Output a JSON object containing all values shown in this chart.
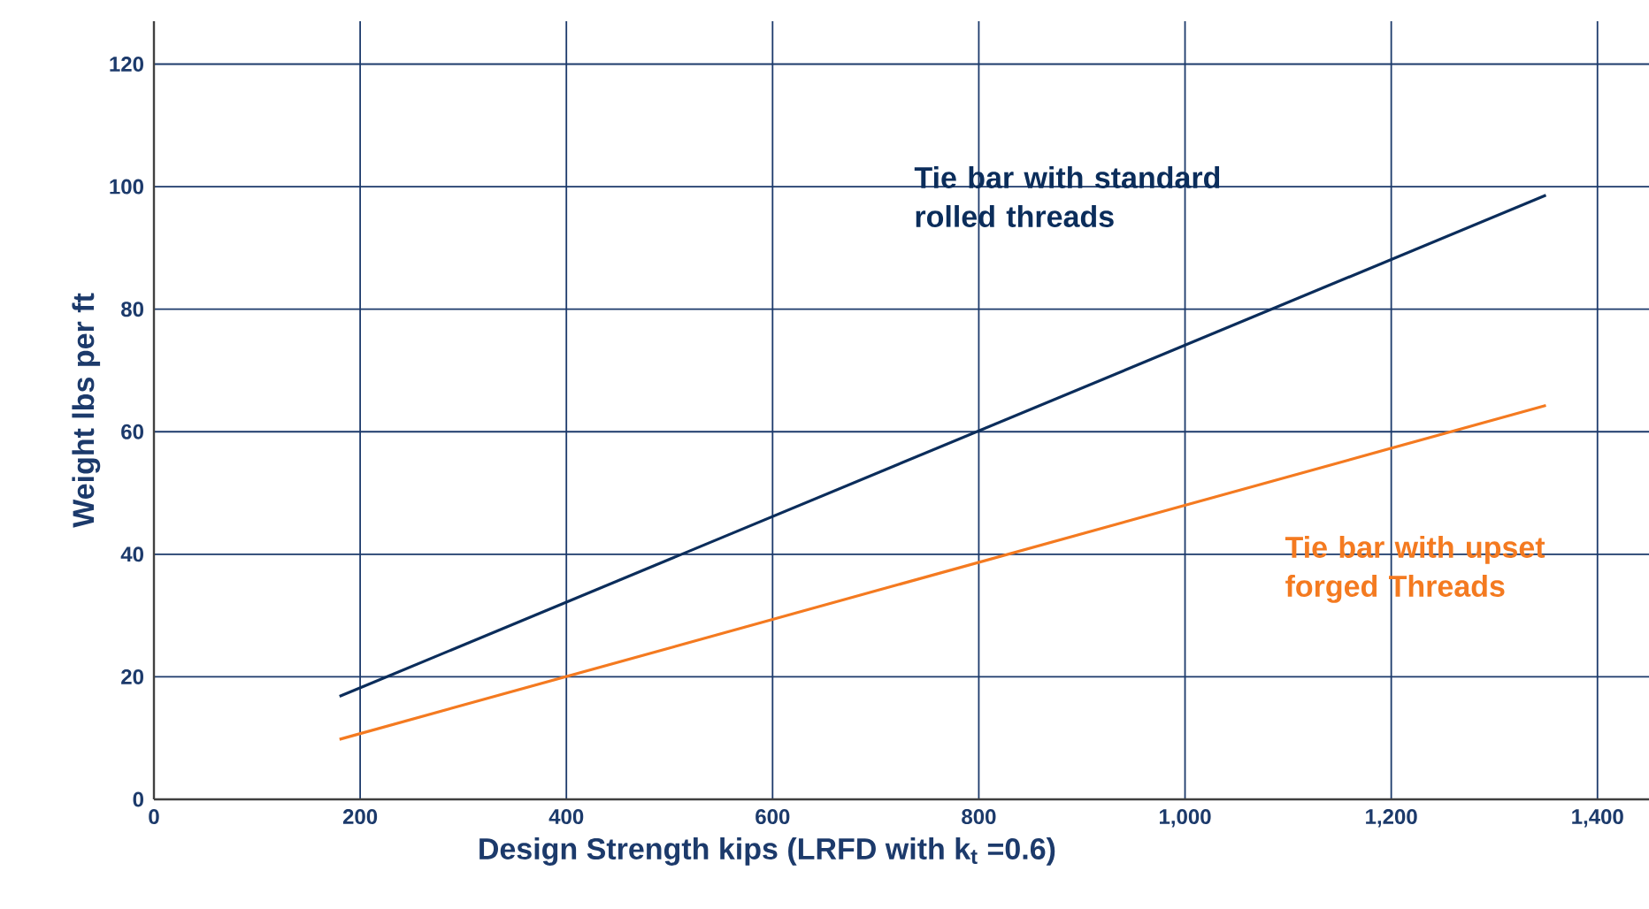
{
  "chart_data": {
    "type": "line",
    "xlabel": "Design Strength kips (LRFD with k$_{t}$ =0.6)",
    "ylabel": "Weight lbs per ft",
    "xlim": [
      0,
      1450
    ],
    "ylim": [
      0,
      127
    ],
    "xticks": [
      0,
      200,
      400,
      600,
      800,
      {
        "value": 1000,
        "label": "1,000"
      },
      {
        "value": 1200,
        "label": "1,200"
      },
      {
        "value": 1400,
        "label": "1,400"
      }
    ],
    "yticks": [
      0,
      20,
      40,
      60,
      80,
      100,
      120
    ],
    "grid": true,
    "legend": false,
    "marker": "none",
    "line_style": "solid",
    "x": [
      180,
      1350
    ],
    "series": [
      {
        "name": "Tie bar with standard rolled threads",
        "color": "#0b2d5b",
        "values": [
          16.8,
          98.6
        ]
      },
      {
        "name": "Tie bar with upset forged Threads",
        "color": "#f47a20",
        "values": [
          9.8,
          64.3
        ]
      }
    ]
  }
}
